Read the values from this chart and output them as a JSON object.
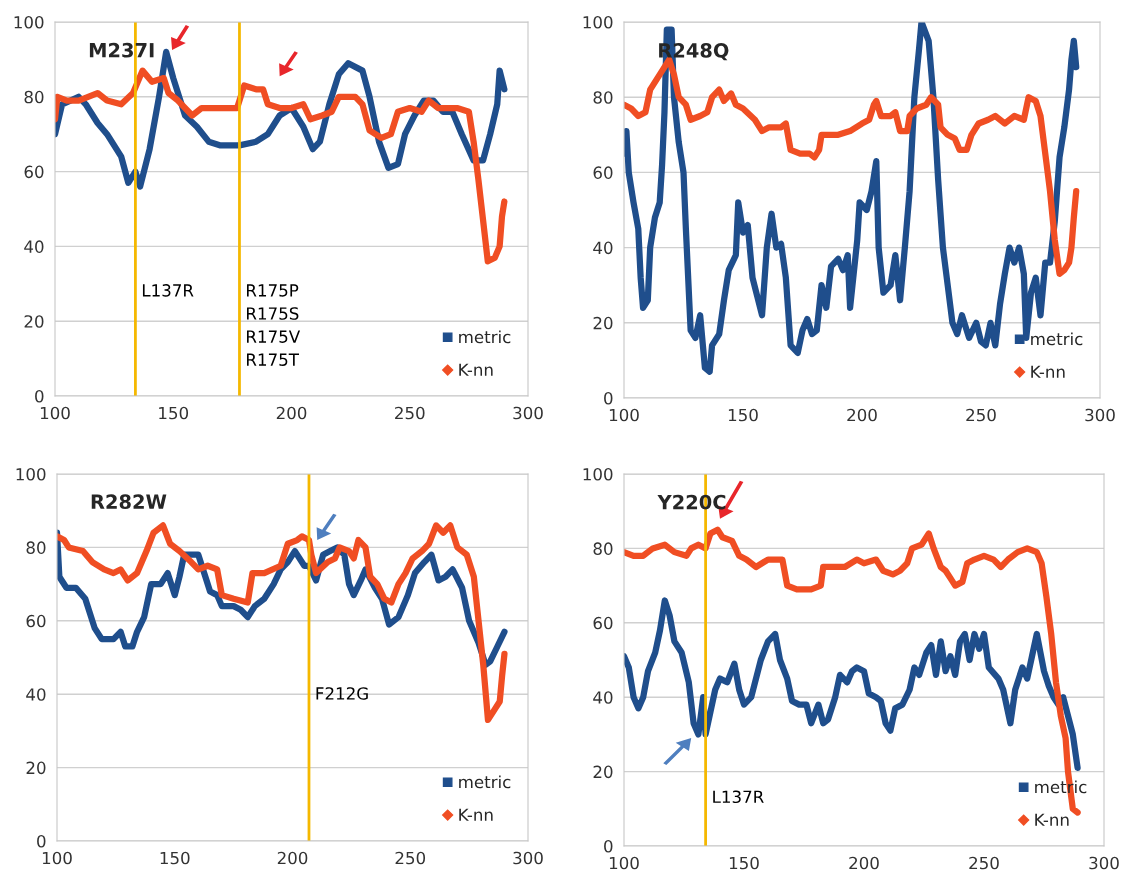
{
  "chart_data": [
    {
      "type": "line",
      "title": "M237I",
      "xlim": [
        100,
        300
      ],
      "ylim": [
        0,
        100
      ],
      "xticks": [
        100,
        150,
        200,
        250,
        300
      ],
      "yticks": [
        0,
        20,
        40,
        60,
        80,
        100
      ],
      "grid": "y",
      "legend": "bottom right",
      "ref_lines": [
        {
          "axis": "x",
          "value": 134,
          "label": "L137R",
          "color": "#f5b800"
        },
        {
          "axis": "x",
          "value": 178,
          "label": "R175P\nR175S\nR175V\nR175T",
          "color": "#f5b800"
        }
      ],
      "series": [
        {
          "name": "metric",
          "color": "#1f4e8c",
          "x": [
            100,
            103,
            110,
            113,
            118,
            122,
            128,
            131,
            134,
            136,
            140,
            144,
            147,
            150,
            155,
            160,
            165,
            170,
            178,
            185,
            190,
            195,
            200,
            205,
            209,
            212,
            216,
            220,
            224,
            230,
            233,
            237,
            241,
            245,
            248,
            252,
            256,
            260,
            264,
            268,
            272,
            277,
            281,
            284,
            287,
            288,
            290
          ],
          "values": [
            70,
            78,
            80,
            78,
            73,
            70,
            64,
            57,
            60,
            56,
            66,
            80,
            92,
            85,
            75,
            72,
            68,
            67,
            67,
            68,
            70,
            75,
            77,
            72,
            66,
            68,
            78,
            86,
            89,
            87,
            80,
            68,
            61,
            62,
            70,
            75,
            79,
            79,
            76,
            76,
            70,
            63,
            63,
            70,
            78,
            87,
            82
          ]
        },
        {
          "name": "K-nn",
          "color": "#f04e23",
          "x": [
            100,
            101,
            105,
            110,
            118,
            122,
            128,
            133,
            137,
            141,
            146,
            148,
            152,
            158,
            162,
            170,
            177,
            180,
            185,
            188,
            190,
            195,
            200,
            205,
            208,
            213,
            217,
            220,
            227,
            230,
            233,
            238,
            242,
            245,
            250,
            255,
            258,
            262,
            270,
            275,
            277,
            279,
            281,
            283,
            286,
            288,
            289,
            290
          ],
          "values": [
            74,
            80,
            79,
            79,
            81,
            79,
            78,
            81,
            87,
            84,
            85,
            81,
            79,
            75,
            77,
            77,
            77,
            83,
            82,
            82,
            78,
            77,
            77,
            78,
            74,
            75,
            76,
            80,
            80,
            78,
            71,
            69,
            70,
            76,
            77,
            76,
            79,
            77,
            77,
            76,
            68,
            58,
            47,
            36,
            37,
            40,
            48,
            52
          ]
        }
      ]
    },
    {
      "type": "line",
      "title": "R248Q",
      "xlim": [
        100,
        300
      ],
      "ylim": [
        0,
        100
      ],
      "xticks": [
        100,
        150,
        200,
        250,
        300
      ],
      "yticks": [
        0,
        20,
        40,
        60,
        80,
        100
      ],
      "grid": "y",
      "legend": "bottom right",
      "series": [
        {
          "name": "metric",
          "color": "#1f4e8c",
          "x": [
            100,
            101,
            102,
            104,
            106,
            107,
            108,
            110,
            111,
            113,
            115,
            116,
            117,
            118,
            120,
            121,
            123,
            125,
            126,
            128,
            130,
            132,
            134,
            136,
            137,
            140,
            142,
            144,
            147,
            148,
            150,
            152,
            154,
            156,
            158,
            160,
            162,
            164,
            166,
            168,
            170,
            173,
            175,
            177,
            179,
            181,
            183,
            185,
            187,
            190,
            192,
            194,
            195,
            198,
            199,
            202,
            204,
            206,
            207,
            209,
            212,
            214,
            216,
            218,
            220,
            222,
            224,
            225,
            228,
            230,
            232,
            234,
            236,
            238,
            240,
            242,
            245,
            248,
            250,
            252,
            254,
            256,
            258,
            260,
            262,
            264,
            266,
            268,
            269,
            271,
            273,
            275,
            277,
            279,
            281,
            283,
            285,
            287,
            288,
            289,
            290
          ],
          "values": [
            65,
            71,
            60,
            52,
            45,
            32,
            24,
            26,
            40,
            48,
            52,
            62,
            76,
            98,
            98,
            80,
            68,
            60,
            45,
            18,
            16,
            22,
            8,
            7,
            14,
            17,
            26,
            34,
            38,
            52,
            44,
            46,
            32,
            27,
            22,
            40,
            49,
            40,
            41,
            32,
            14,
            12,
            18,
            21,
            17,
            18,
            30,
            24,
            35,
            37,
            34,
            38,
            24,
            42,
            52,
            50,
            55,
            63,
            40,
            28,
            30,
            38,
            26,
            40,
            55,
            80,
            93,
            100,
            95,
            80,
            58,
            40,
            30,
            20,
            17,
            22,
            16,
            20,
            15,
            14,
            20,
            14,
            25,
            33,
            40,
            36,
            40,
            33,
            16,
            28,
            32,
            22,
            36,
            36,
            47,
            64,
            72,
            82,
            90,
            95,
            88
          ]
        },
        {
          "name": "K-nn",
          "color": "#f04e23",
          "x": [
            100,
            103,
            106,
            109,
            111,
            114,
            117,
            119,
            121,
            123,
            126,
            128,
            132,
            135,
            137,
            140,
            142,
            145,
            147,
            150,
            155,
            158,
            161,
            166,
            168,
            170,
            174,
            178,
            180,
            182,
            183,
            186,
            190,
            195,
            200,
            203,
            205,
            206,
            208,
            212,
            214,
            216,
            219,
            220,
            223,
            227,
            229,
            232,
            233,
            236,
            239,
            241,
            244,
            246,
            249,
            253,
            256,
            260,
            264,
            268,
            270,
            273,
            275,
            277,
            279,
            281,
            283,
            285,
            287,
            288,
            289,
            290
          ],
          "values": [
            78,
            77,
            75,
            76,
            82,
            85,
            88,
            90,
            86,
            80,
            78,
            74,
            75,
            76,
            80,
            82,
            79,
            81,
            78,
            77,
            74,
            71,
            72,
            72,
            73,
            66,
            65,
            65,
            64,
            66,
            70,
            70,
            70,
            71,
            73,
            74,
            78,
            79,
            75,
            75,
            76,
            71,
            71,
            75,
            77,
            78,
            80,
            78,
            72,
            70,
            69,
            66,
            66,
            70,
            73,
            74,
            75,
            73,
            75,
            74,
            80,
            79,
            75,
            65,
            55,
            42,
            33,
            34,
            36,
            40,
            48,
            55
          ]
        }
      ]
    },
    {
      "type": "line",
      "title": "R282W",
      "xlim": [
        100,
        300
      ],
      "ylim": [
        0,
        100
      ],
      "xticks": [
        100,
        150,
        200,
        250,
        300
      ],
      "yticks": [
        0,
        20,
        40,
        60,
        80,
        100
      ],
      "grid": "y",
      "legend": "bottom right",
      "ref_lines": [
        {
          "axis": "x",
          "value": 207,
          "label": "F212G",
          "color": "#f5b800"
        }
      ],
      "series": [
        {
          "name": "metric",
          "color": "#1f4e8c",
          "x": [
            100,
            101,
            104,
            108,
            112,
            116,
            119,
            124,
            127,
            129,
            132,
            134,
            137,
            140,
            144,
            147,
            150,
            152,
            154,
            160,
            163,
            165,
            168,
            170,
            175,
            178,
            181,
            184,
            188,
            192,
            195,
            198,
            201,
            205,
            207,
            210,
            213,
            216,
            219,
            222,
            224,
            226,
            229,
            231,
            235,
            238,
            241,
            245,
            249,
            252,
            256,
            259,
            262,
            265,
            268,
            272,
            275,
            279,
            282,
            284,
            287,
            290
          ],
          "values": [
            84,
            72,
            69,
            69,
            66,
            58,
            55,
            55,
            57,
            53,
            53,
            57,
            61,
            70,
            70,
            73,
            67,
            72,
            78,
            78,
            72,
            68,
            67,
            64,
            64,
            63,
            61,
            64,
            66,
            70,
            74,
            76,
            79,
            75,
            75,
            71,
            78,
            79,
            80,
            78,
            70,
            67,
            71,
            74,
            69,
            66,
            59,
            61,
            67,
            73,
            76,
            78,
            71,
            72,
            74,
            69,
            60,
            54,
            48,
            49,
            53,
            57
          ]
        },
        {
          "name": "K-nn",
          "color": "#f04e23",
          "x": [
            100,
            103,
            105,
            111,
            115,
            120,
            124,
            127,
            130,
            134,
            138,
            141,
            145,
            148,
            152,
            157,
            160,
            164,
            168,
            170,
            175,
            181,
            183,
            188,
            195,
            198,
            202,
            204,
            207,
            208,
            210,
            215,
            218,
            220,
            224,
            226,
            228,
            231,
            233,
            236,
            239,
            242,
            245,
            248,
            251,
            255,
            258,
            261,
            264,
            267,
            270,
            274,
            277,
            279,
            281,
            283,
            286,
            288,
            289,
            290
          ],
          "values": [
            83,
            82,
            80,
            79,
            76,
            74,
            73,
            74,
            71,
            73,
            79,
            84,
            86,
            81,
            79,
            76,
            74,
            75,
            74,
            67,
            66,
            65,
            73,
            73,
            75,
            81,
            82,
            83,
            82,
            78,
            73,
            76,
            77,
            80,
            79,
            77,
            82,
            80,
            72,
            70,
            66,
            65,
            70,
            73,
            77,
            79,
            81,
            86,
            84,
            86,
            80,
            78,
            72,
            60,
            48,
            33,
            36,
            38,
            45,
            51
          ]
        }
      ]
    },
    {
      "type": "line",
      "title": "Y220C",
      "xlim": [
        100,
        300
      ],
      "ylim": [
        0,
        100
      ],
      "xticks": [
        100,
        150,
        200,
        250,
        300
      ],
      "yticks": [
        0,
        20,
        40,
        60,
        80,
        100
      ],
      "grid": "y",
      "legend": "bottom right",
      "ref_lines": [
        {
          "axis": "x",
          "value": 134,
          "label": "L137R",
          "color": "#f5b800"
        }
      ],
      "series": [
        {
          "name": "metric",
          "color": "#1f4e8c",
          "x": [
            100,
            102,
            104,
            106,
            108,
            110,
            113,
            115,
            117,
            119,
            121,
            124,
            127,
            129,
            131,
            133,
            134,
            136,
            138,
            140,
            143,
            146,
            148,
            150,
            153,
            157,
            160,
            163,
            165,
            168,
            170,
            173,
            176,
            178,
            181,
            183,
            185,
            188,
            190,
            193,
            195,
            197,
            200,
            202,
            205,
            207,
            209,
            211,
            213,
            216,
            219,
            221,
            223,
            226,
            228,
            230,
            232,
            234,
            236,
            238,
            240,
            242,
            244,
            246,
            248,
            250,
            252,
            256,
            258,
            261,
            263,
            266,
            268,
            270,
            272,
            275,
            277,
            279,
            281,
            283,
            285,
            287,
            289
          ],
          "values": [
            51,
            48,
            40,
            37,
            40,
            47,
            52,
            58,
            66,
            62,
            55,
            52,
            44,
            33,
            30,
            40,
            30,
            36,
            42,
            45,
            44,
            49,
            42,
            38,
            40,
            50,
            55,
            57,
            50,
            45,
            39,
            38,
            38,
            33,
            38,
            33,
            34,
            40,
            46,
            44,
            47,
            48,
            47,
            41,
            40,
            39,
            33,
            31,
            37,
            38,
            42,
            48,
            46,
            52,
            54,
            46,
            55,
            47,
            51,
            46,
            55,
            57,
            50,
            57,
            53,
            57,
            48,
            45,
            42,
            33,
            42,
            48,
            45,
            51,
            57,
            47,
            43,
            40,
            38,
            40,
            35,
            30,
            21
          ]
        },
        {
          "name": "K-nn",
          "color": "#f04e23",
          "x": [
            100,
            104,
            108,
            112,
            117,
            121,
            126,
            128,
            131,
            134,
            136,
            139,
            141,
            145,
            148,
            151,
            155,
            160,
            166,
            168,
            172,
            178,
            182,
            183,
            186,
            192,
            197,
            200,
            205,
            208,
            212,
            215,
            218,
            220,
            224,
            227,
            229,
            232,
            234,
            236,
            238,
            241,
            243,
            246,
            250,
            254,
            257,
            260,
            264,
            268,
            272,
            274,
            276,
            278,
            280,
            282,
            284,
            285,
            287,
            289
          ],
          "values": [
            79,
            78,
            78,
            80,
            81,
            79,
            78,
            80,
            81,
            80,
            84,
            85,
            83,
            82,
            78,
            77,
            75,
            77,
            77,
            70,
            69,
            69,
            70,
            75,
            75,
            75,
            77,
            76,
            77,
            74,
            73,
            74,
            76,
            80,
            81,
            84,
            80,
            75,
            74,
            72,
            70,
            71,
            76,
            77,
            78,
            77,
            75,
            77,
            79,
            80,
            79,
            76,
            67,
            57,
            44,
            35,
            29,
            20,
            10,
            9
          ]
        }
      ]
    }
  ]
}
